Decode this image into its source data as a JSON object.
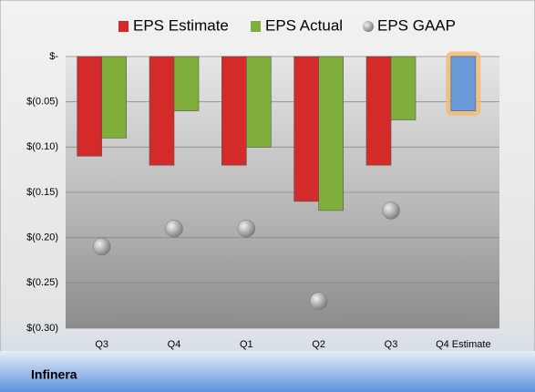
{
  "chart_data": {
    "type": "bar",
    "footer": "Infinera",
    "categories": [
      "Q3",
      "Q4",
      "Q1",
      "Q2",
      "Q3",
      "Q4 Estimate"
    ],
    "series": [
      {
        "name": "EPS Estimate",
        "color": "#d42a2a",
        "values": [
          -0.11,
          -0.12,
          -0.12,
          -0.16,
          -0.12,
          -0.06
        ],
        "colors": [
          "#d42a2a",
          "#d42a2a",
          "#d42a2a",
          "#d42a2a",
          "#d42a2a",
          "#6a9bd8"
        ]
      },
      {
        "name": "EPS Actual",
        "color": "#7fae3a",
        "values": [
          -0.09,
          -0.06,
          -0.1,
          -0.17,
          -0.07,
          null
        ]
      },
      {
        "name": "EPS GAAP",
        "color": "#a6a6a6",
        "marker": "circle",
        "values": [
          -0.21,
          -0.19,
          -0.19,
          -0.27,
          -0.17,
          null
        ]
      }
    ],
    "ylim": [
      -0.3,
      0
    ],
    "yticks": [
      {
        "value": 0,
        "label": "$-"
      },
      {
        "value": -0.05,
        "label": "$(0.05)"
      },
      {
        "value": -0.1,
        "label": "$(0.10)"
      },
      {
        "value": -0.15,
        "label": "$(0.15)"
      },
      {
        "value": -0.2,
        "label": "$(0.20)"
      },
      {
        "value": -0.25,
        "label": "$(0.25)"
      },
      {
        "value": -0.3,
        "label": "$(0.30)"
      }
    ],
    "grid": true
  }
}
